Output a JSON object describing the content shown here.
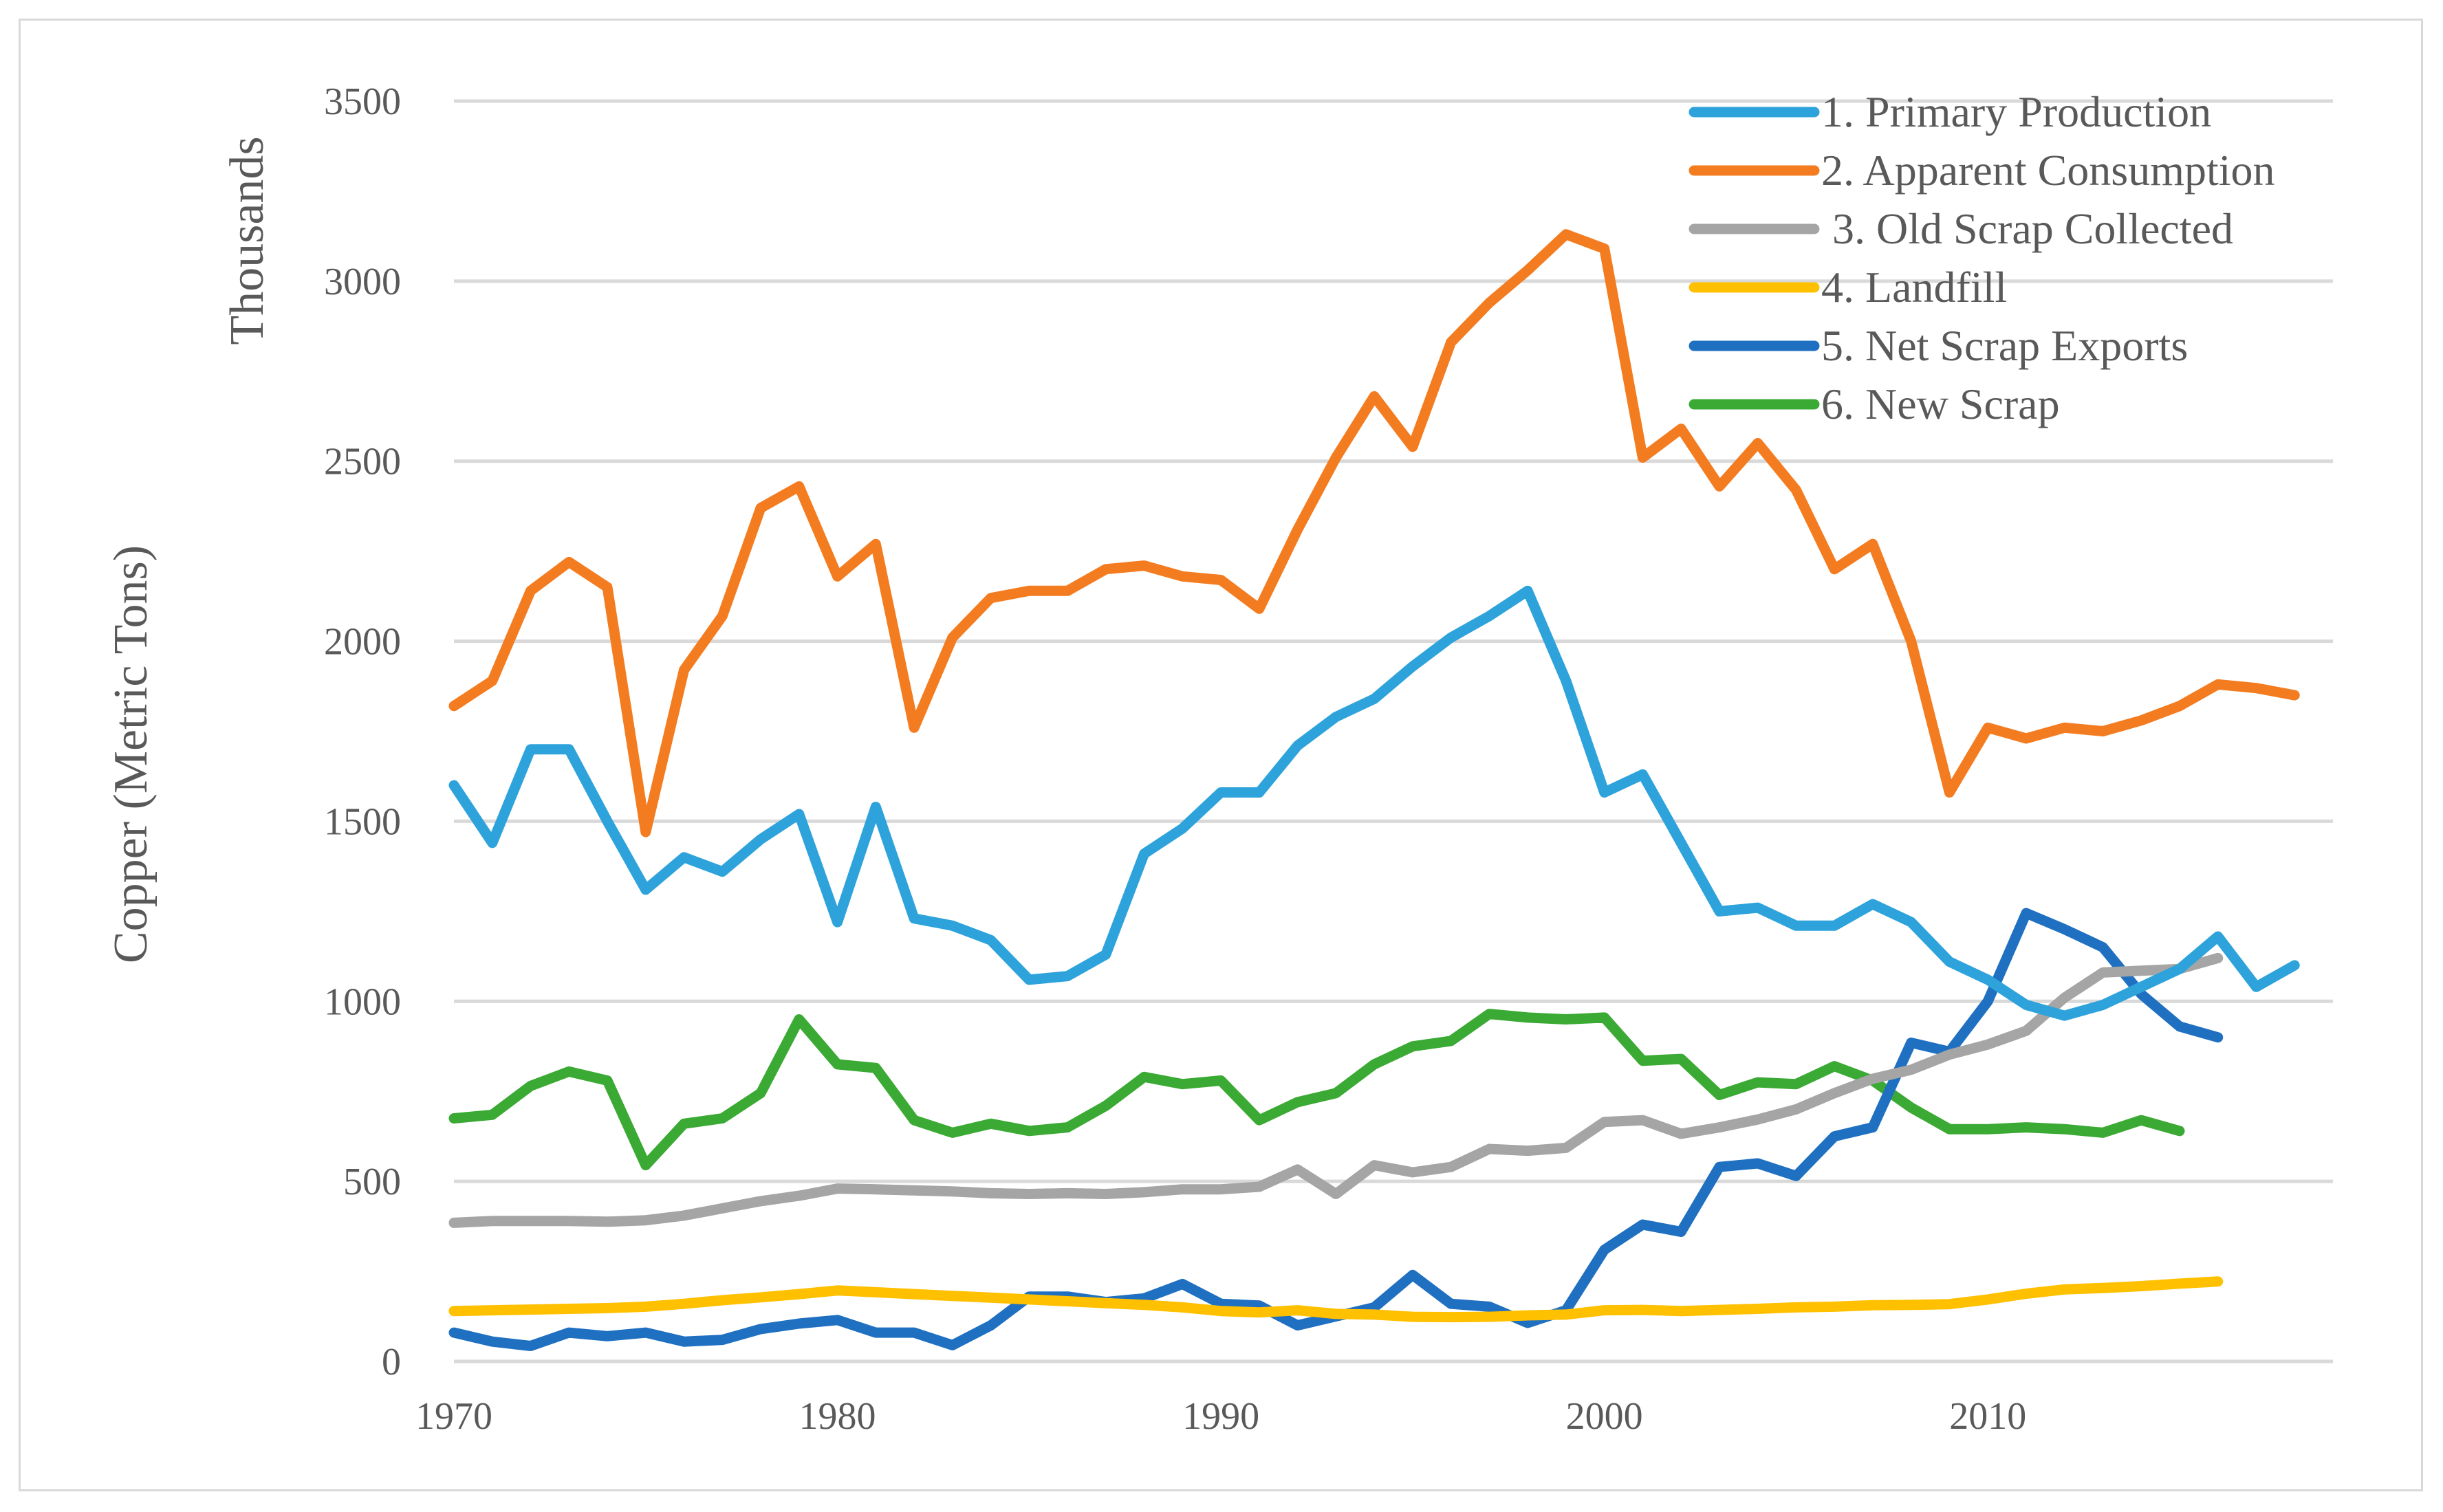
{
  "chart_data": {
    "type": "line",
    "title": "",
    "ylabel": "Copper (Metric Tons)",
    "yunit_label": "Thousands",
    "xlim": [
      1970,
      2019
    ],
    "ylim": [
      0,
      3500
    ],
    "xticks": [
      1970,
      1980,
      1990,
      2000,
      2010
    ],
    "yticks": [
      0,
      500,
      1000,
      1500,
      2000,
      2500,
      3000,
      3500
    ],
    "grid": true,
    "legend_position": "top-right",
    "series": [
      {
        "name": "1. Primary Production",
        "color": "#2EA3DB",
        "x_start": 1970,
        "values": [
          1600,
          1440,
          1700,
          1700,
          1500,
          1310,
          1400,
          1360,
          1450,
          1520,
          1220,
          1540,
          1230,
          1210,
          1170,
          1060,
          1070,
          1130,
          1410,
          1480,
          1580,
          1580,
          1710,
          1790,
          1840,
          1930,
          2010,
          2070,
          2140,
          1890,
          1580,
          1630,
          1440,
          1250,
          1260,
          1210,
          1210,
          1270,
          1220,
          1110,
          1060,
          990,
          960,
          990,
          1040,
          1090,
          1180,
          1040,
          1100
        ]
      },
      {
        "name": "2. Apparent Consumption",
        "color": "#F47C20",
        "x_start": 1970,
        "values": [
          1820,
          1890,
          2140,
          2220,
          2150,
          1470,
          1920,
          2070,
          2370,
          2430,
          2180,
          2270,
          1760,
          2010,
          2120,
          2140,
          2140,
          2200,
          2210,
          2180,
          2170,
          2090,
          2310,
          2510,
          2680,
          2540,
          2830,
          2940,
          3030,
          3130,
          3090,
          2510,
          2590,
          2430,
          2550,
          2420,
          2200,
          2270,
          2000,
          1580,
          1760,
          1730,
          1760,
          1750,
          1780,
          1820,
          1880,
          1870,
          1850
        ]
      },
      {
        "name": " 3. Old Scrap Collected",
        "color": "#A5A5A5",
        "x_start": 1970,
        "values": [
          385,
          390,
          390,
          390,
          388,
          392,
          405,
          425,
          445,
          460,
          480,
          478,
          475,
          472,
          467,
          465,
          467,
          465,
          470,
          478,
          478,
          485,
          533,
          465,
          545,
          525,
          540,
          590,
          585,
          593,
          665,
          670,
          632,
          650,
          672,
          700,
          745,
          785,
          810,
          852,
          880,
          918,
          1010,
          1080,
          1085,
          1090,
          1120
        ]
      },
      {
        "name": "4. Landfill",
        "color": "#FFC000",
        "x_start": 1970,
        "values": [
          140,
          142,
          144,
          146,
          148,
          152,
          160,
          170,
          178,
          187,
          197,
          192,
          187,
          182,
          177,
          172,
          167,
          162,
          157,
          150,
          140,
          136,
          142,
          132,
          130,
          124,
          123,
          124,
          128,
          130,
          142,
          143,
          140,
          143,
          146,
          150,
          152,
          156,
          157,
          159,
          172,
          188,
          200,
          204,
          209,
          216,
          222
        ]
      },
      {
        "name": "5. Net Scrap Exports",
        "color": "#1F70C1",
        "x_start": 1970,
        "values": [
          80,
          55,
          43,
          80,
          70,
          80,
          55,
          60,
          90,
          105,
          115,
          80,
          80,
          45,
          100,
          180,
          180,
          165,
          175,
          215,
          160,
          155,
          100,
          125,
          150,
          240,
          160,
          152,
          107,
          142,
          310,
          380,
          360,
          540,
          550,
          515,
          625,
          650,
          885,
          860,
          1000,
          1245,
          1200,
          1150,
          1020,
          930,
          900
        ]
      },
      {
        "name": "6. New Scrap",
        "color": "#3BAA34",
        "x_start": 1970,
        "values": [
          675,
          685,
          765,
          805,
          780,
          545,
          660,
          675,
          745,
          950,
          825,
          815,
          670,
          635,
          660,
          640,
          650,
          710,
          790,
          770,
          780,
          670,
          720,
          745,
          825,
          875,
          890,
          965,
          955,
          950,
          955,
          835,
          840,
          740,
          775,
          770,
          820,
          780,
          705,
          645,
          645,
          650,
          645,
          635,
          670,
          640
        ]
      }
    ]
  }
}
